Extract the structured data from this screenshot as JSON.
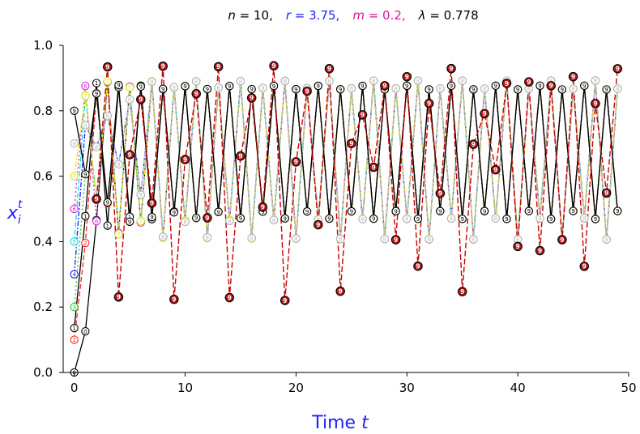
{
  "chart_data": {
    "type": "line",
    "title": {
      "n_sym": "n",
      "n_val": " = 10,",
      "r_sym": "r",
      "r_val": " = 3.75,",
      "m_sym": "m",
      "m_val": " = 0.2,",
      "l_sym": "λ",
      "l_val": " = 0.778"
    },
    "colors": {
      "r": "#1f1fff",
      "m": "#e0149c",
      "axis_label": "#1f1fff"
    },
    "xlabel": {
      "prefix": "Time ",
      "var": "t"
    },
    "ylabel": {
      "base": "x",
      "sub": "i",
      "sup": "t"
    },
    "xlim": [
      -1,
      50
    ],
    "ylim": [
      0,
      1
    ],
    "xticks": [
      0,
      10,
      20,
      30,
      40,
      50
    ],
    "yticks": [
      0.0,
      0.2,
      0.4,
      0.6,
      0.8,
      1.0
    ],
    "ytick_labels": [
      "0.0",
      "0.2",
      "0.4",
      "0.6",
      "0.8",
      "1.0"
    ],
    "t_max": 49,
    "logistic_r": 3.75,
    "coupling_m": 0.2,
    "grid": false,
    "series": [
      {
        "marker": "0",
        "color": "#000000",
        "dash": "",
        "x0": 0.0
      },
      {
        "marker": "1",
        "color": "#000000",
        "dash": "",
        "x0": 0.1358
      },
      {
        "marker": "2",
        "color": "#ff2020",
        "dash": "6,3",
        "x0": 0.1
      },
      {
        "marker": "3",
        "color": "#22c422",
        "dash": "2,3",
        "x0": 0.2
      },
      {
        "marker": "4",
        "color": "#1f1fff",
        "dash": "6,2,2,2",
        "x0": 0.3
      },
      {
        "marker": "5",
        "color": "#00e0e0",
        "dash": "6,3",
        "x0": 0.4
      },
      {
        "marker": "6",
        "color": "#e020e0",
        "dash": "2,3",
        "x0": 0.5
      },
      {
        "marker": "7",
        "color": "#e6e600",
        "dash": "6,2,2,2",
        "x0": 0.6
      },
      {
        "marker": "8",
        "color": "#bbbbbb",
        "dash": "6,3",
        "x0": 0.7
      },
      {
        "marker": "9",
        "color": "#000000",
        "dash": "",
        "x0": 0.8
      }
    ],
    "synchronized": {
      "marker": "9",
      "fill": "#b01818",
      "line": "#cc0000",
      "stroke": "#000000",
      "x0": 0.53,
      "start_t": 2
    }
  }
}
